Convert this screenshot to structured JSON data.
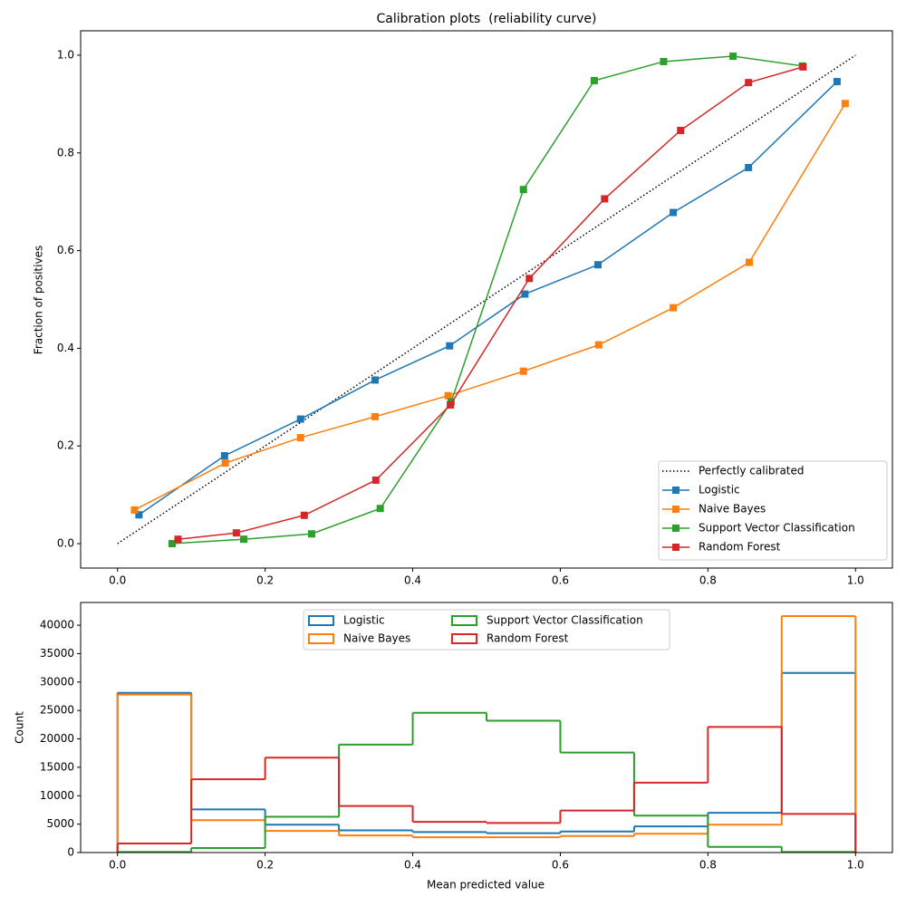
{
  "chart_data": [
    {
      "type": "line",
      "title": "Calibration plots  (reliability curve)",
      "y_label": "Fraction of positives",
      "xlim": [
        -0.05,
        1.05
      ],
      "ylim": [
        -0.05,
        1.05
      ],
      "xticks": [
        {
          "value": 0,
          "label": "0.0"
        },
        0.2,
        0.4,
        0.6,
        0.8,
        {
          "value": 1,
          "label": "1.0"
        }
      ],
      "yticks": [
        {
          "value": 0,
          "label": "0.0"
        },
        0.2,
        0.4,
        0.6,
        0.8,
        {
          "value": 1,
          "label": "1.0"
        }
      ],
      "legend": "lower right",
      "series": [
        {
          "name": "Perfectly calibrated",
          "color": "#000000",
          "style": "dotted",
          "x": [
            0,
            1
          ],
          "values": [
            0,
            1
          ]
        },
        {
          "name": "Logistic",
          "color": "#1f77b4",
          "marker": "square",
          "x": [
            0.029,
            0.145,
            0.248,
            0.349,
            0.45,
            0.552,
            0.651,
            0.753,
            0.855,
            0.975
          ],
          "values": [
            0.059,
            0.18,
            0.255,
            0.335,
            0.405,
            0.511,
            0.571,
            0.678,
            0.77,
            0.946
          ]
        },
        {
          "name": "Naive Bayes",
          "color": "#ff7f0e",
          "marker": "square",
          "x": [
            0.023,
            0.146,
            0.248,
            0.349,
            0.448,
            0.55,
            0.652,
            0.753,
            0.856,
            0.986
          ],
          "values": [
            0.069,
            0.165,
            0.217,
            0.26,
            0.303,
            0.353,
            0.407,
            0.483,
            0.576,
            0.901
          ]
        },
        {
          "name": "Support Vector Classification",
          "color": "#2ca02c",
          "marker": "square",
          "x": [
            0.074,
            0.171,
            0.263,
            0.356,
            0.452,
            0.55,
            0.646,
            0.74,
            0.834,
            0.928
          ],
          "values": [
            0.0,
            0.009,
            0.02,
            0.072,
            0.29,
            0.725,
            0.948,
            0.987,
            0.998,
            0.978
          ]
        },
        {
          "name": "Random Forest",
          "color": "#d62728",
          "marker": "square",
          "x": [
            0.082,
            0.161,
            0.253,
            0.35,
            0.451,
            0.558,
            0.66,
            0.763,
            0.855,
            0.929
          ],
          "values": [
            0.009,
            0.022,
            0.058,
            0.13,
            0.284,
            0.543,
            0.706,
            0.846,
            0.944,
            0.976
          ]
        }
      ]
    },
    {
      "type": "histogram",
      "x_label": "Mean predicted value",
      "y_label": "Count",
      "xlim": [
        -0.05,
        1.05
      ],
      "ylim": [
        0,
        44000
      ],
      "xticks": [
        {
          "value": 0,
          "label": "0.0"
        },
        0.2,
        0.4,
        0.6,
        0.8,
        {
          "value": 1,
          "label": "1.0"
        }
      ],
      "yticks": [
        0,
        5000,
        10000,
        15000,
        20000,
        25000,
        30000,
        35000,
        40000
      ],
      "legend": "upper center",
      "bins": [
        0,
        0.1,
        0.2,
        0.3,
        0.4,
        0.5,
        0.6,
        0.7,
        0.8,
        0.9,
        1.0
      ],
      "series": [
        {
          "name": "Logistic",
          "color": "#1f77b4",
          "values": [
            28100,
            7600,
            4900,
            3900,
            3600,
            3400,
            3700,
            4600,
            7000,
            31600
          ]
        },
        {
          "name": "Naive Bayes",
          "color": "#ff7f0e",
          "values": [
            27800,
            5700,
            3800,
            3000,
            2700,
            2700,
            2900,
            3300,
            4900,
            41600
          ]
        },
        {
          "name": "Support Vector Classification",
          "color": "#2ca02c",
          "values": [
            100,
            800,
            6300,
            19000,
            24600,
            23200,
            17600,
            6500,
            1000,
            100
          ]
        },
        {
          "name": "Random Forest",
          "color": "#d62728",
          "values": [
            1600,
            12900,
            16700,
            8200,
            5400,
            5200,
            7400,
            12300,
            22100,
            6800
          ]
        }
      ]
    }
  ]
}
